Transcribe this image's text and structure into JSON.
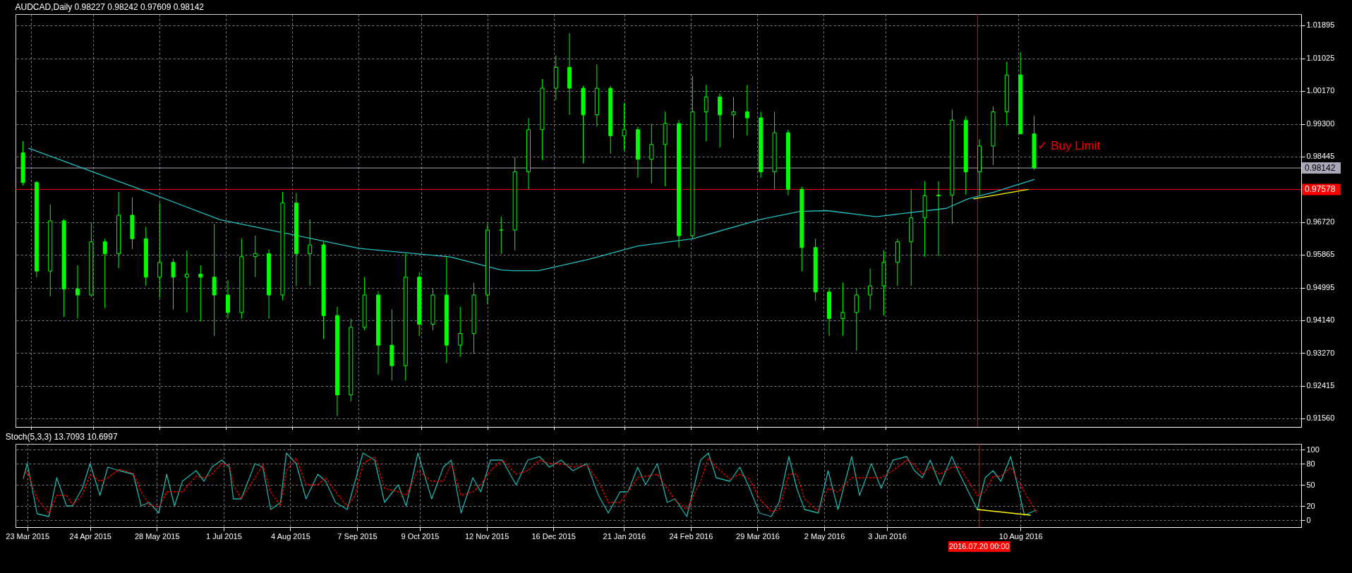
{
  "chart_data": [
    {
      "type": "candlestick",
      "title": "AUDCAD,Daily  0.98227 0.98242 0.97609 0.98142",
      "color": "#00ff00",
      "x": [
        "2015-03-19",
        "2015-03-26",
        "2015-04-02",
        "2015-04-09",
        "2015-04-16",
        "2015-04-23",
        "2015-04-30",
        "2015-05-07",
        "2015-05-14",
        "2015-05-21",
        "2015-05-28",
        "2015-06-04",
        "2015-06-11",
        "2015-06-18",
        "2015-06-25",
        "2015-07-02",
        "2015-07-09",
        "2015-07-16",
        "2015-07-23",
        "2015-07-30",
        "2015-08-06",
        "2015-08-13",
        "2015-08-20",
        "2015-08-27",
        "2015-09-03",
        "2015-09-10",
        "2015-09-17",
        "2015-09-24",
        "2015-10-01",
        "2015-10-08",
        "2015-10-15",
        "2015-10-22",
        "2015-10-29",
        "2015-11-05",
        "2015-11-12",
        "2015-11-19",
        "2015-11-26",
        "2015-12-03",
        "2015-12-10",
        "2015-12-17",
        "2015-12-24",
        "2015-12-31",
        "2016-01-07",
        "2016-01-14",
        "2016-01-21",
        "2016-01-28",
        "2016-02-04",
        "2016-02-11",
        "2016-02-18",
        "2016-02-25",
        "2016-03-03",
        "2016-03-10",
        "2016-03-17",
        "2016-03-24",
        "2016-03-31",
        "2016-04-07",
        "2016-04-14",
        "2016-04-21",
        "2016-04-28",
        "2016-05-05",
        "2016-05-12",
        "2016-05-19",
        "2016-05-26",
        "2016-06-02",
        "2016-06-09",
        "2016-06-16",
        "2016-06-23",
        "2016-06-30",
        "2016-07-07",
        "2016-07-14",
        "2016-07-21",
        "2016-07-28",
        "2016-08-04",
        "2016-08-11",
        "2016-08-18"
      ],
      "ohlc": [
        [
          0.9854,
          0.9885,
          0.9768,
          0.9776
        ],
        [
          0.9776,
          0.978,
          0.9527,
          0.9543
        ],
        [
          0.9543,
          0.9718,
          0.9477,
          0.9675
        ],
        [
          0.9675,
          0.968,
          0.9422,
          0.9496
        ],
        [
          0.9496,
          0.9558,
          0.9418,
          0.948
        ],
        [
          0.948,
          0.9671,
          0.9475,
          0.962
        ],
        [
          0.962,
          0.9628,
          0.9445,
          0.9589
        ],
        [
          0.9589,
          0.9751,
          0.955,
          0.969
        ],
        [
          0.969,
          0.9737,
          0.9601,
          0.9628
        ],
        [
          0.9628,
          0.9659,
          0.9504,
          0.9527
        ],
        [
          0.9527,
          0.9722,
          0.9473,
          0.9566
        ],
        [
          0.9566,
          0.9575,
          0.9442,
          0.9527
        ],
        [
          0.9527,
          0.9597,
          0.9434,
          0.9535
        ],
        [
          0.9535,
          0.9558,
          0.9411,
          0.9527
        ],
        [
          0.9527,
          0.9667,
          0.9372,
          0.948
        ],
        [
          0.948,
          0.9519,
          0.9418,
          0.9434
        ],
        [
          0.9434,
          0.9628,
          0.9418,
          0.9581
        ],
        [
          0.9581,
          0.9636,
          0.9527,
          0.9589
        ],
        [
          0.9589,
          0.96,
          0.9418,
          0.948
        ],
        [
          0.948,
          0.9751,
          0.9466,
          0.9722
        ],
        [
          0.9722,
          0.9748,
          0.9504,
          0.9589
        ],
        [
          0.9589,
          0.9679,
          0.9504,
          0.9612
        ],
        [
          0.9612,
          0.962,
          0.9364,
          0.9426
        ],
        [
          0.9426,
          0.9449,
          0.9162,
          0.9217
        ],
        [
          0.9217,
          0.9418,
          0.92,
          0.9395
        ],
        [
          0.9395,
          0.9527,
          0.9387,
          0.948
        ],
        [
          0.948,
          0.949,
          0.927,
          0.9348
        ],
        [
          0.9348,
          0.9442,
          0.9255,
          0.9294
        ],
        [
          0.9294,
          0.9589,
          0.9255,
          0.9527
        ],
        [
          0.9527,
          0.954,
          0.9372,
          0.9403
        ],
        [
          0.9403,
          0.9496,
          0.9387,
          0.948
        ],
        [
          0.948,
          0.9581,
          0.9301,
          0.9348
        ],
        [
          0.9348,
          0.9449,
          0.9317,
          0.9379
        ],
        [
          0.9379,
          0.9512,
          0.9325,
          0.948
        ],
        [
          0.948,
          0.9667,
          0.9457,
          0.9651
        ],
        [
          0.9651,
          0.9686,
          0.9589,
          0.9651
        ],
        [
          0.9651,
          0.9843,
          0.9597,
          0.9804
        ],
        [
          0.9804,
          0.9946,
          0.9758,
          0.9915
        ],
        [
          0.9915,
          1.0048,
          0.9835,
          1.0024
        ],
        [
          1.0024,
          1.011,
          0.9993,
          1.0079
        ],
        [
          1.0079,
          1.0169,
          0.9954,
          1.0024
        ],
        [
          1.0024,
          1.003,
          0.9827,
          0.9954
        ],
        [
          0.9954,
          1.0087,
          0.9923,
          1.0024
        ],
        [
          1.0024,
          1.003,
          0.9852,
          0.9899
        ],
        [
          0.9899,
          0.9985,
          0.986,
          0.9915
        ],
        [
          0.9915,
          0.9923,
          0.9789,
          0.9837
        ],
        [
          0.9837,
          0.9931,
          0.9773,
          0.9876
        ],
        [
          0.9876,
          0.9962,
          0.9766,
          0.9931
        ],
        [
          0.9931,
          0.994,
          0.9605,
          0.9636
        ],
        [
          0.9636,
          1.0056,
          0.9628,
          0.9962
        ],
        [
          0.9962,
          1.0032,
          0.9884,
          1.0001
        ],
        [
          1.0001,
          1.001,
          0.9868,
          0.9954
        ],
        [
          0.9954,
          1.0001,
          0.9892,
          0.9962
        ],
        [
          0.9962,
          1.0032,
          0.9899,
          0.9946
        ],
        [
          0.9946,
          0.9962,
          0.9789,
          0.9804
        ],
        [
          0.9804,
          0.9962,
          0.9758,
          0.9907
        ],
        [
          0.9907,
          0.9915,
          0.9742,
          0.9758
        ],
        [
          0.9758,
          0.9765,
          0.9542,
          0.9605
        ],
        [
          0.9605,
          0.9628,
          0.9465,
          0.9488
        ],
        [
          0.9488,
          0.95,
          0.9372,
          0.9418
        ],
        [
          0.9418,
          0.9512,
          0.9372,
          0.9434
        ],
        [
          0.9434,
          0.9496,
          0.9333,
          0.948
        ],
        [
          0.948,
          0.955,
          0.9442,
          0.9504
        ],
        [
          0.9504,
          0.9597,
          0.9426,
          0.9566
        ],
        [
          0.9566,
          0.9628,
          0.9504,
          0.962
        ],
        [
          0.962,
          0.9756,
          0.9504,
          0.9683
        ],
        [
          0.9683,
          0.9779,
          0.9581,
          0.9741
        ],
        [
          0.9741,
          0.9779,
          0.9583,
          0.9743
        ],
        [
          0.9743,
          0.9968,
          0.9667,
          0.994
        ],
        [
          0.994,
          0.995,
          0.9744,
          0.9804
        ],
        [
          0.9804,
          0.989,
          0.9743,
          0.9872
        ],
        [
          0.9872,
          0.9976,
          0.9822,
          0.9962
        ],
        [
          0.9962,
          1.0094,
          0.9925,
          1.0059
        ],
        [
          1.0059,
          1.0119,
          0.9904,
          0.9904
        ],
        [
          0.9904,
          0.9952,
          0.9809,
          0.98142
        ]
      ],
      "series": [
        {
          "type": "line",
          "color": "#20c0c0",
          "line_style": "solid",
          "x": [
            "2015-03-22",
            "2015-05-16",
            "2015-06-28",
            "2015-09-07",
            "2015-10-24",
            "2015-11-19",
            "2015-11-25",
            "2015-12-08",
            "2016-01-03",
            "2016-01-28",
            "2016-02-25",
            "2016-03-31",
            "2016-04-20",
            "2016-05-04",
            "2016-05-29",
            "2016-07-04",
            "2016-07-15",
            "2016-07-28",
            "2016-08-18"
          ],
          "values": [
            0.9866,
            0.9762,
            0.9678,
            0.9603,
            0.958,
            0.9546,
            0.9544,
            0.9544,
            0.9574,
            0.9609,
            0.9628,
            0.9679,
            0.97,
            0.9702,
            0.9686,
            0.9708,
            0.9733,
            0.975,
            0.9784
          ]
        },
        {
          "type": "line",
          "color": "#ffff00",
          "line_style": "solid",
          "x": [
            "2016-07-18",
            "2016-08-15"
          ],
          "values": [
            0.9733,
            0.9758
          ]
        }
      ],
      "ref_lines": [
        {
          "axis": "y",
          "value": 0.98142,
          "label": "0.98142",
          "color": "#a8a8b8",
          "line_style": "solid"
        },
        {
          "axis": "y",
          "value": 0.97578,
          "label": "0.97578",
          "color": "#ff0000",
          "line_style": "solid"
        },
        {
          "axis": "x",
          "value": "2016-07-20",
          "color": "#ff0000"
        }
      ],
      "annotations": [
        "✓ Buy Limit"
      ],
      "xlim": [
        "2015-03-17",
        "2016-12-31"
      ],
      "ylim": [
        0.9133,
        1.0219
      ],
      "xticks": [
        {
          "value": "2015-03-23",
          "label": null
        },
        {
          "value": "2015-04-24",
          "label": null
        },
        {
          "value": "2015-05-28",
          "label": null
        },
        {
          "value": "2015-07-01",
          "label": null
        },
        {
          "value": "2015-08-04",
          "label": null
        },
        {
          "value": "2015-09-07",
          "label": null
        },
        {
          "value": "2015-10-09",
          "label": null
        },
        {
          "value": "2015-11-12",
          "label": null
        },
        {
          "value": "2015-12-16",
          "label": null
        },
        {
          "value": "2016-01-21",
          "label": null
        },
        {
          "value": "2016-02-24",
          "label": null
        },
        {
          "value": "2016-03-29",
          "label": null
        },
        {
          "value": "2016-05-02",
          "label": null
        },
        {
          "value": "2016-06-03",
          "label": null
        },
        {
          "value": "2016-08-10",
          "label": null
        }
      ],
      "yticks": [
        {
          "value": 0.9156,
          "label": "0.91560"
        },
        0.92415,
        {
          "value": 0.9327,
          "label": "0.93270"
        },
        {
          "value": 0.9414,
          "label": "0.94140"
        },
        0.94995,
        0.95865,
        {
          "value": 0.9672,
          "label": "0.96720"
        },
        0.98445,
        {
          "value": 0.993,
          "label": "0.99300"
        },
        {
          "value": 1.0017,
          "label": "1.00170"
        },
        1.01025,
        1.01895
      ],
      "tick_labels": "y",
      "grid": true
    },
    {
      "type": "line",
      "title": "Stoch(5,3,3) 13.7093 10.6997",
      "series": [
        {
          "type": "line",
          "color": "#20b2aa",
          "line_style": "solid",
          "x": [
            "2015-03-21",
            "2015-03-23",
            "2015-03-28",
            "2015-04-03",
            "2015-04-07",
            "2015-04-12",
            "2015-04-15",
            "2015-04-20",
            "2015-04-24",
            "2015-04-29",
            "2015-05-03",
            "2015-05-09",
            "2015-05-16",
            "2015-05-20",
            "2015-05-24",
            "2015-05-29",
            "2015-06-02",
            "2015-06-06",
            "2015-06-10",
            "2015-06-17",
            "2015-06-21",
            "2015-06-25",
            "2015-06-30",
            "2015-07-04",
            "2015-07-06",
            "2015-07-10",
            "2015-07-17",
            "2015-07-21",
            "2015-07-25",
            "2015-07-30",
            "2015-08-02",
            "2015-08-07",
            "2015-08-12",
            "2015-08-18",
            "2015-08-22",
            "2015-08-27",
            "2015-09-02",
            "2015-09-06",
            "2015-09-10",
            "2015-09-16",
            "2015-09-21",
            "2015-09-28",
            "2015-10-02",
            "2015-10-08",
            "2015-10-15",
            "2015-10-21",
            "2015-10-25",
            "2015-10-30",
            "2015-11-05",
            "2015-11-09",
            "2015-11-14",
            "2015-11-20",
            "2015-11-27",
            "2015-12-03",
            "2015-12-09",
            "2015-12-14",
            "2015-12-20",
            "2015-12-26",
            "2016-01-02",
            "2016-01-08",
            "2016-01-13",
            "2016-01-19",
            "2016-01-23",
            "2016-01-28",
            "2016-02-01",
            "2016-02-07",
            "2016-02-12",
            "2016-02-16",
            "2016-02-22",
            "2016-02-29",
            "2016-03-04",
            "2016-03-08",
            "2016-03-15",
            "2016-03-20",
            "2016-03-25",
            "2016-03-30",
            "2016-04-05",
            "2016-04-09",
            "2016-04-14",
            "2016-04-18",
            "2016-04-22",
            "2016-04-29",
            "2016-05-04",
            "2016-05-09",
            "2016-05-16",
            "2016-05-20",
            "2016-05-26",
            "2016-05-31",
            "2016-06-06",
            "2016-06-13",
            "2016-06-17",
            "2016-06-21",
            "2016-06-25",
            "2016-06-30",
            "2016-07-06",
            "2016-07-10",
            "2016-07-19",
            "2016-07-23",
            "2016-07-27",
            "2016-07-31",
            "2016-08-05",
            "2016-08-12",
            "2016-08-18"
          ],
          "values": [
            59,
            80,
            9,
            5,
            60,
            20,
            20,
            45,
            80,
            35,
            75,
            70,
            65,
            20,
            25,
            10,
            65,
            20,
            55,
            70,
            55,
            75,
            85,
            75,
            30,
            30,
            80,
            75,
            15,
            25,
            95,
            80,
            30,
            65,
            55,
            25,
            15,
            55,
            95,
            85,
            25,
            50,
            20,
            95,
            30,
            75,
            85,
            10,
            60,
            40,
            85,
            85,
            50,
            85,
            90,
            75,
            85,
            70,
            80,
            35,
            10,
            40,
            40,
            75,
            50,
            80,
            25,
            30,
            5,
            85,
            95,
            60,
            55,
            75,
            45,
            10,
            5,
            25,
            90,
            45,
            15,
            10,
            70,
            15,
            90,
            35,
            80,
            45,
            85,
            90,
            70,
            60,
            85,
            50,
            90,
            65,
            15,
            60,
            70,
            55,
            90,
            7,
            14
          ]
        },
        {
          "type": "line",
          "color": "#ff0000",
          "line_style": "dotted",
          "x": [
            "2015-03-21",
            "2015-03-23",
            "2015-03-28",
            "2015-04-03",
            "2015-04-07",
            "2015-04-12",
            "2015-04-15",
            "2015-04-20",
            "2015-04-24",
            "2015-04-29",
            "2015-05-03",
            "2015-05-09",
            "2015-05-16",
            "2015-05-20",
            "2015-05-24",
            "2015-05-29",
            "2015-06-02",
            "2015-06-06",
            "2015-06-10",
            "2015-06-17",
            "2015-06-21",
            "2015-06-25",
            "2015-06-30",
            "2015-07-04",
            "2015-07-06",
            "2015-07-10",
            "2015-07-17",
            "2015-07-21",
            "2015-07-25",
            "2015-07-30",
            "2015-08-02",
            "2015-08-07",
            "2015-08-12",
            "2015-08-18",
            "2015-08-22",
            "2015-08-27",
            "2015-09-02",
            "2015-09-06",
            "2015-09-10",
            "2015-09-16",
            "2015-09-21",
            "2015-09-28",
            "2015-10-02",
            "2015-10-08",
            "2015-10-15",
            "2015-10-21",
            "2015-10-25",
            "2015-10-30",
            "2015-11-05",
            "2015-11-09",
            "2015-11-14",
            "2015-11-20",
            "2015-11-27",
            "2015-12-03",
            "2015-12-09",
            "2015-12-14",
            "2015-12-20",
            "2015-12-26",
            "2016-01-02",
            "2016-01-08",
            "2016-01-13",
            "2016-01-19",
            "2016-01-23",
            "2016-01-28",
            "2016-02-01",
            "2016-02-07",
            "2016-02-12",
            "2016-02-16",
            "2016-02-22",
            "2016-02-29",
            "2016-03-04",
            "2016-03-08",
            "2016-03-15",
            "2016-03-20",
            "2016-03-25",
            "2016-03-30",
            "2016-04-05",
            "2016-04-09",
            "2016-04-14",
            "2016-04-18",
            "2016-04-22",
            "2016-04-29",
            "2016-05-04",
            "2016-05-09",
            "2016-05-16",
            "2016-05-20",
            "2016-05-26",
            "2016-05-31",
            "2016-06-06",
            "2016-06-13",
            "2016-06-17",
            "2016-06-21",
            "2016-06-25",
            "2016-06-30",
            "2016-07-06",
            "2016-07-10",
            "2016-07-19",
            "2016-07-23",
            "2016-07-27",
            "2016-07-31",
            "2016-08-05",
            "2016-08-12",
            "2016-08-18"
          ],
          "values": [
            62,
            70,
            30,
            10,
            35,
            35,
            22,
            35,
            65,
            55,
            60,
            72,
            66,
            40,
            22,
            18,
            40,
            40,
            40,
            62,
            60,
            65,
            80,
            78,
            50,
            30,
            60,
            78,
            40,
            20,
            70,
            88,
            50,
            50,
            60,
            40,
            20,
            35,
            80,
            90,
            45,
            40,
            35,
            70,
            55,
            55,
            80,
            35,
            40,
            50,
            70,
            85,
            65,
            70,
            85,
            80,
            80,
            75,
            78,
            55,
            25,
            25,
            40,
            60,
            62,
            65,
            45,
            28,
            15,
            55,
            88,
            75,
            58,
            65,
            58,
            30,
            12,
            15,
            65,
            65,
            30,
            12,
            45,
            40,
            60,
            60,
            60,
            60,
            70,
            85,
            78,
            65,
            75,
            65,
            75,
            75,
            35,
            40,
            62,
            62,
            75,
            40,
            11
          ]
        },
        {
          "type": "line",
          "color": "#ffff00",
          "line_style": "solid",
          "x": [
            "2016-07-19",
            "2016-08-15"
          ],
          "values": [
            15,
            7
          ]
        }
      ],
      "ref_lines": [
        {
          "axis": "x",
          "value": "2016-07-20",
          "label": "2016.07.20 00:00",
          "color": "#ff0000"
        }
      ],
      "xlim": [
        "2015-03-17",
        "2016-12-31"
      ],
      "ylim": [
        -10,
        108
      ],
      "xticks": [
        {
          "value": "2015-03-23",
          "label": "23 Mar 2015"
        },
        {
          "value": "2015-04-24",
          "label": "24 Apr 2015"
        },
        {
          "value": "2015-05-28",
          "label": "28 May 2015"
        },
        {
          "value": "2015-07-01",
          "label": "1 Jul 2015"
        },
        {
          "value": "2015-08-04",
          "label": "4 Aug 2015"
        },
        {
          "value": "2015-09-07",
          "label": "7 Sep 2015"
        },
        {
          "value": "2015-10-09",
          "label": "9 Oct 2015"
        },
        {
          "value": "2015-11-12",
          "label": "12 Nov 2015"
        },
        {
          "value": "2015-12-16",
          "label": "16 Dec 2015"
        },
        {
          "value": "2016-01-21",
          "label": "21 Jan 2016"
        },
        {
          "value": "2016-02-24",
          "label": "24 Feb 2016"
        },
        {
          "value": "2016-03-29",
          "label": "29 Mar 2016"
        },
        {
          "value": "2016-05-02",
          "label": "2 May 2016"
        },
        {
          "value": "2016-06-03",
          "label": "3 Jun 2016"
        },
        {
          "value": "2016-08-10",
          "label": "10 Aug 2016"
        }
      ],
      "yticks": [
        0,
        20,
        50,
        80,
        100
      ],
      "grid": true
    }
  ]
}
